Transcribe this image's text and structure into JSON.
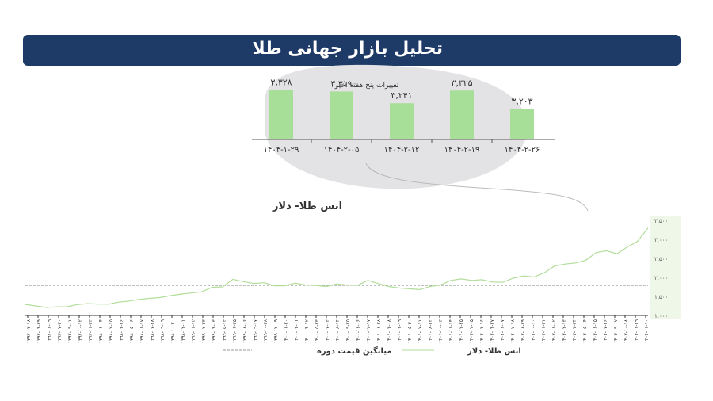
{
  "header": {
    "title": "تحلیل بازار جهانی طلا"
  },
  "chart_data": [
    {
      "type": "bar",
      "title": "تغییرات پنج هفته اخیر",
      "categories": [
        "۱۴۰۴-۱-۲۹",
        "۱۴۰۴-۲-۰۵",
        "۱۴۰۴-۲-۱۲",
        "۱۴۰۴-۲-۱۹",
        "۱۴۰۴-۲-۲۶"
      ],
      "values": [
        3328,
        3319,
        3241,
        3325,
        3203
      ],
      "value_labels": [
        "۳,۳۲۸",
        "۳,۳۱۹",
        "۳,۲۴۱",
        "۳,۳۲۵",
        "۳,۲۰۳"
      ],
      "ylim": [
        3000,
        3400
      ],
      "bar_color": "#a8df98"
    },
    {
      "type": "line",
      "title": "انس طلا- دلار",
      "ylim": [
        1000,
        3500
      ],
      "yticks": [
        1000,
        1500,
        2000,
        2500,
        3000,
        3500
      ],
      "ytick_labels": [
        "۱,۰۰۰",
        "۱,۵۰۰",
        "۲,۰۰۰",
        "۲,۵۰۰",
        "۳,۰۰۰",
        "۳,۵۰۰"
      ],
      "average_value": 1790,
      "xtick_labels": [
        "۱۳۹۷-۰۳-۱۸",
        "۱۳۹۷-۰۴-۲۹",
        "۱۳۹۷-۰۶-۰۹",
        "۱۳۹۷-۰۷-۲۰",
        "۱۳۹۷-۰۹-۰۱",
        "۱۳۹۷-۱۰-۱۲",
        "۱۳۹۷-۱۱-۲۳",
        "۱۳۹۸-۰۱-۰۴",
        "۱۳۹۸-۰۲-۱۵",
        "۱۳۹۸-۰۳-۲۶",
        "۱۳۹۸-۰۵-۰۶",
        "۱۳۹۸-۰۶-۱۷",
        "۱۳۹۸-۰۷-۲۸",
        "۱۳۹۸-۰۹-۰۹",
        "۱۳۹۸-۱۰-۲۰",
        "۱۳۹۸-۱۲-۰۱",
        "۱۳۹۹-۰۱-۱۲",
        "۱۳۹۹-۰۲-۲۳",
        "۱۳۹۹-۰۴-۰۳",
        "۱۳۹۹-۰۵-۱۴",
        "۱۳۹۹-۰۶-۲۵",
        "۱۳۹۹-۰۸-۰۶",
        "۱۳۹۹-۰۹-۱۷",
        "۱۳۹۹-۱۰-۲۸",
        "۱۳۹۹-۱۲-۰۹",
        "۱۴۰۰-۰۱-۲۰",
        "۱۴۰۰-۰۳-۰۱",
        "۱۴۰۰-۰۴-۱۲",
        "۱۴۰۰-۰۵-۲۳",
        "۱۴۰۰-۰۷-۰۳",
        "۱۴۰۰-۰۸-۱۴",
        "۱۴۰۰-۰۹-۲۵",
        "۱۴۰۰-۱۱-۰۶",
        "۱۴۰۰-۱۲-۱۷",
        "۱۴۰۱-۰۱-۲۸",
        "۱۴۰۱-۰۳-۰۸",
        "۱۴۰۱-۰۴-۱۹",
        "۱۴۰۱-۰۵-۳۰",
        "۱۴۰۱-۰۷-۱۱",
        "۱۴۰۱-۰۸-۲۲",
        "۱۴۰۱-۱۰-۰۳",
        "۱۴۰۱-۱۱-۱۴",
        "۱۴۰۱-۱۲-۲۵",
        "۱۴۰۲-۰۲-۰۵",
        "۱۴۰۲-۰۳-۱۶",
        "۱۴۰۲-۰۴-۲۷",
        "۱۴۰۲-۰۶-۰۷",
        "۱۴۰۲-۰۷-۱۸",
        "۱۴۰۲-۰۸-۲۹",
        "۱۴۰۲-۱۰-۱۰",
        "۱۴۰۲-۱۱-۲۱",
        "۱۴۰۳-۰۱-۰۲",
        "۱۴۰۳-۰۲-۱۳",
        "۱۴۰۳-۰۳-۲۴",
        "۱۴۰۳-۰۵-۰۴",
        "۱۴۰۳-۰۶-۱۵",
        "۱۴۰۳-۰۷-۲۶",
        "۱۴۰۳-۰۹-۰۷",
        "۱۴۰۳-۱۰-۱۸",
        "۱۴۰۳-۱۱-۲۹",
        "۱۴۰۴-۰۱-۱۰"
      ],
      "values": [
        1290,
        1250,
        1210,
        1225,
        1230,
        1285,
        1310,
        1300,
        1295,
        1350,
        1380,
        1420,
        1450,
        1470,
        1520,
        1560,
        1590,
        1620,
        1740,
        1750,
        1950,
        1890,
        1840,
        1860,
        1780,
        1780,
        1850,
        1800,
        1790,
        1760,
        1830,
        1800,
        1790,
        1920,
        1840,
        1760,
        1720,
        1700,
        1680,
        1760,
        1800,
        1920,
        1960,
        1920,
        1940,
        1880,
        1870,
        1980,
        2040,
        2010,
        2120,
        2300,
        2350,
        2380,
        2450,
        2650,
        2700,
        2620,
        2800,
        2950,
        3300
      ],
      "legend": [
        "انس طلا- دلار",
        "میانگین قیمت دوره"
      ],
      "line_color": "#b2dd9a",
      "average_color": "#9a9a9a"
    }
  ]
}
